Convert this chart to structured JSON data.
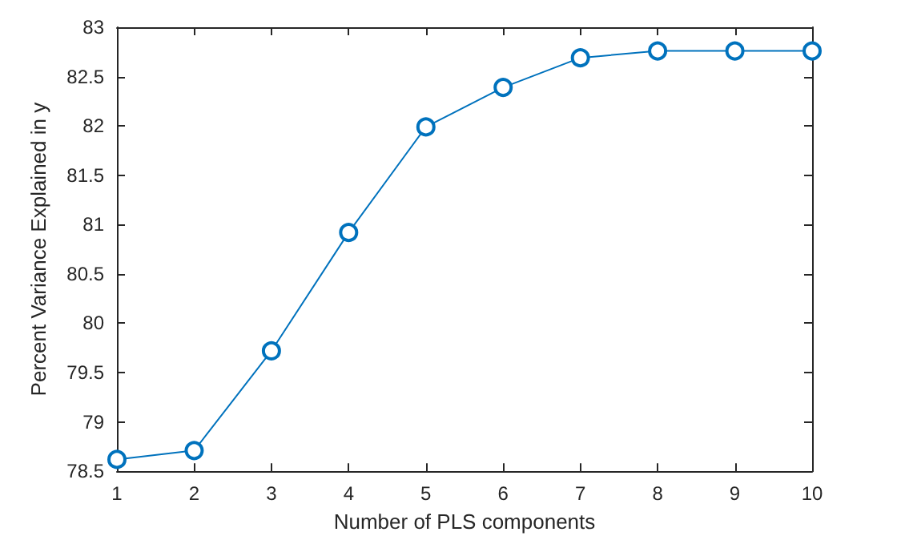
{
  "chart_data": {
    "type": "line",
    "xlabel": "Number of PLS components",
    "ylabel": "Percent Variance Explained in y",
    "x": [
      1,
      2,
      3,
      4,
      5,
      6,
      7,
      8,
      9,
      10
    ],
    "series": [
      {
        "color": "#0072bd",
        "values": [
          78.62,
          78.71,
          79.72,
          80.92,
          81.99,
          82.39,
          82.69,
          82.76,
          82.76,
          82.76
        ]
      }
    ],
    "xlim": [
      1,
      10
    ],
    "xticks": [
      1,
      2,
      3,
      4,
      5,
      6,
      7,
      8,
      9,
      10
    ],
    "ylim": [
      78.5,
      83
    ],
    "yticks": [
      78.5,
      79,
      79.5,
      80,
      80.5,
      81,
      81.5,
      82,
      82.5,
      83
    ],
    "grid": false,
    "marker": "circle",
    "line_style": "solid"
  }
}
